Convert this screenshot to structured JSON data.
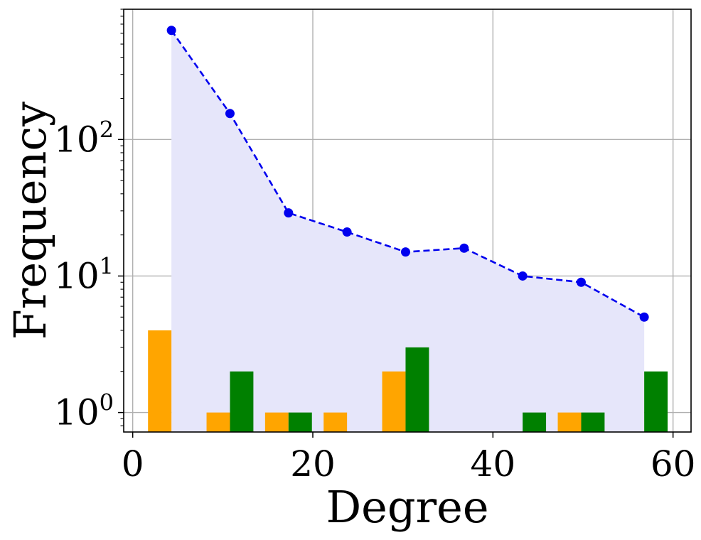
{
  "chart_data": {
    "type": "bar",
    "xlabel": "Degree",
    "ylabel": "Frequency",
    "xlim": [
      -1,
      62
    ],
    "ylim": [
      0.72,
      900
    ],
    "y_scale": "log",
    "grid": true,
    "x_ticks": [
      {
        "value": 0,
        "label": "0"
      },
      {
        "value": 20,
        "label": "20"
      },
      {
        "value": 40,
        "label": "40"
      },
      {
        "value": 60,
        "label": "60"
      }
    ],
    "y_ticks": [
      {
        "value": 1,
        "base": "10",
        "exp": "0"
      },
      {
        "value": 10,
        "base": "10",
        "exp": "1"
      },
      {
        "value": 100,
        "base": "10",
        "exp": "2"
      }
    ],
    "line_series": {
      "color": "#0000ee",
      "fill_color": "#e6e6fa",
      "style": "dashed",
      "x": [
        4.3,
        10.8,
        17.3,
        23.8,
        30.3,
        36.8,
        43.3,
        49.8,
        56.8
      ],
      "values": [
        630,
        155,
        29,
        21,
        15,
        16,
        10,
        9,
        5
      ]
    },
    "bar_series": [
      {
        "color": "#ffa500",
        "bars": [
          {
            "x0": 1.7,
            "x1": 4.3,
            "value": 4
          },
          {
            "x0": 8.2,
            "x1": 10.8,
            "value": 1
          },
          {
            "x0": 14.7,
            "x1": 17.3,
            "value": 1
          },
          {
            "x0": 21.2,
            "x1": 23.8,
            "value": 1
          },
          {
            "x0": 27.7,
            "x1": 30.3,
            "value": 2
          },
          {
            "x0": 47.2,
            "x1": 49.8,
            "value": 1
          }
        ]
      },
      {
        "color": "#008000",
        "bars": [
          {
            "x0": 10.8,
            "x1": 13.4,
            "value": 2
          },
          {
            "x0": 17.3,
            "x1": 19.9,
            "value": 1
          },
          {
            "x0": 30.3,
            "x1": 32.9,
            "value": 3
          },
          {
            "x0": 43.3,
            "x1": 45.9,
            "value": 1
          },
          {
            "x0": 49.8,
            "x1": 52.4,
            "value": 1
          },
          {
            "x0": 56.8,
            "x1": 59.4,
            "value": 2
          }
        ]
      }
    ]
  }
}
